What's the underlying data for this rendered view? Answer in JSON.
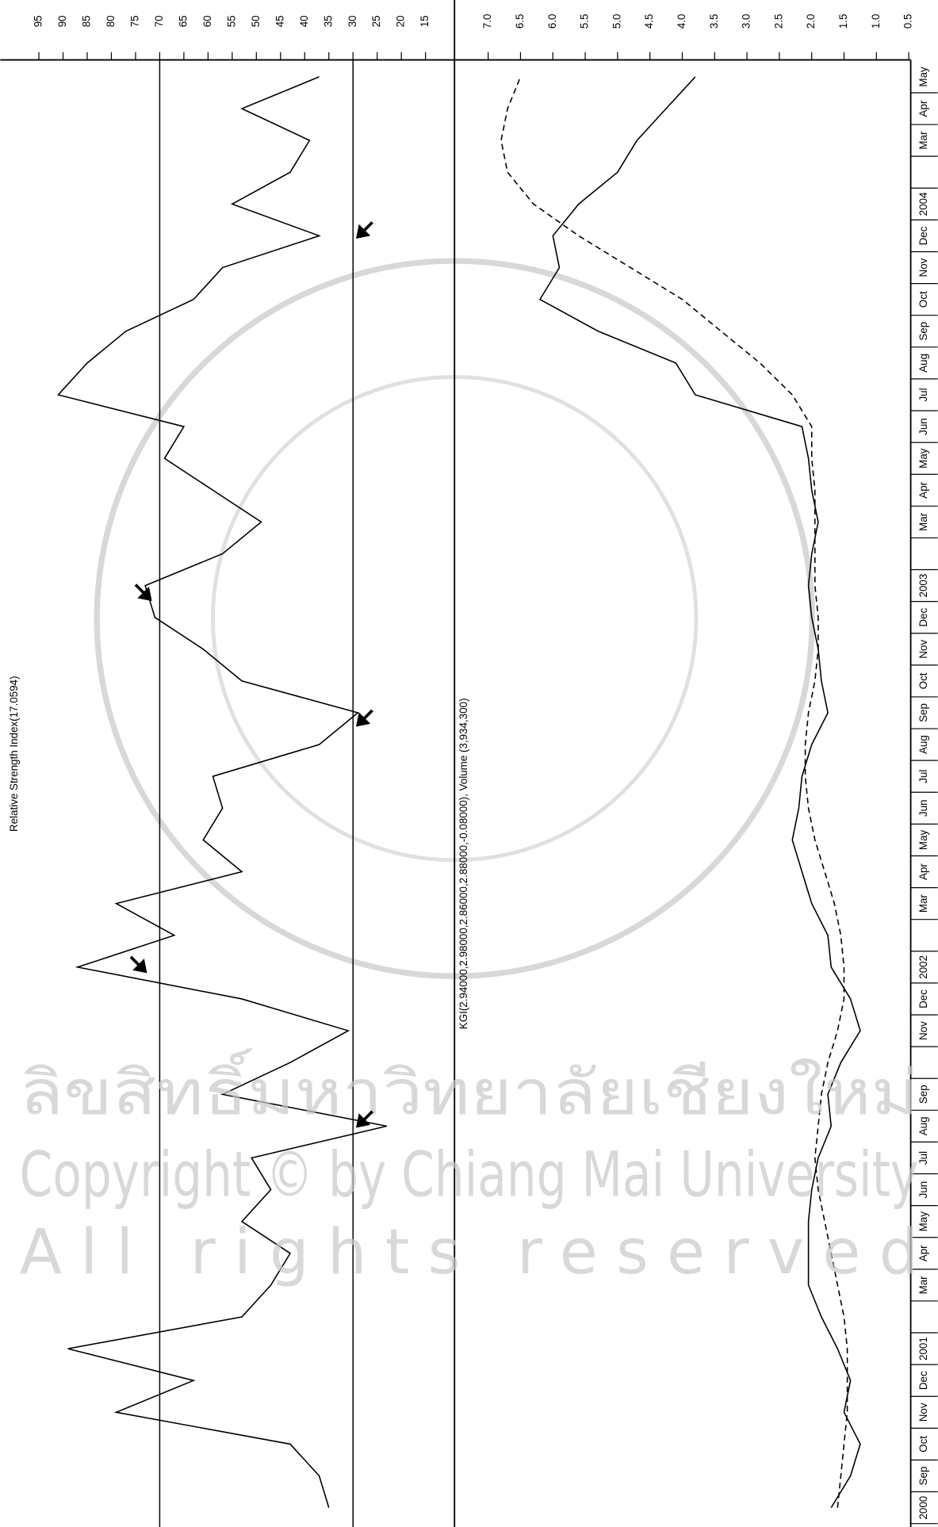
{
  "chart_data": [
    {
      "type": "line",
      "title": "Relative Strength Index(17.0594)",
      "ylim": [
        9,
        103
      ],
      "yticks": [
        95,
        90,
        85,
        80,
        75,
        70,
        65,
        60,
        55,
        50,
        45,
        40,
        35,
        30,
        25,
        20,
        15
      ],
      "reference_lines": [
        70,
        30
      ],
      "series": [
        {
          "color": "#000000",
          "values": [
            35,
            37,
            43,
            79,
            63,
            89,
            53,
            47,
            43,
            53,
            47,
            51,
            23,
            57,
            43,
            31,
            53,
            87,
            67,
            79,
            53,
            61,
            57,
            59,
            37,
            29,
            53,
            61,
            71,
            73,
            57,
            49,
            59,
            69,
            65,
            91,
            85,
            77,
            63,
            57,
            37,
            55,
            43,
            39,
            53,
            37
          ]
        }
      ]
    },
    {
      "type": "line",
      "title": "KGI(2.94000,2.98000,2.86000,2.88000,-0.08000), Volume (3,934,300)",
      "categories": [
        "2000",
        "Sep",
        "Oct",
        "Nov",
        "Dec",
        "2001",
        null,
        "Mar",
        "Apr",
        "May",
        "Jun",
        "Jul",
        "Aug",
        "Sep",
        null,
        "Nov",
        "Dec",
        "2002",
        null,
        "Mar",
        "Apr",
        "May",
        "Jun",
        "Jul",
        "Aug",
        "Sep",
        "Oct",
        "Nov",
        "Dec",
        "2003",
        null,
        "Mar",
        "Apr",
        "May",
        "Jun",
        "Jul",
        "Aug",
        "Sep",
        "Oct",
        "Nov",
        "Dec",
        "2004",
        null,
        "Mar",
        "Apr",
        "May"
      ],
      "ylim": [
        0.47,
        7.52
      ],
      "yticks": [
        {
          "value": 7,
          "label": "7.0"
        },
        6.5,
        {
          "value": 6,
          "label": "6.0"
        },
        5.5,
        {
          "value": 5,
          "label": "5.0"
        },
        4.5,
        {
          "value": 4,
          "label": "4.0"
        },
        3.5,
        {
          "value": 3,
          "label": "3.0"
        },
        2.5,
        {
          "value": 2,
          "label": "2.0"
        },
        1.5,
        {
          "value": 1,
          "label": "1.0"
        },
        0.5
      ],
      "series": [
        {
          "color": "#000000",
          "style": "solid",
          "values": [
            1.7,
            1.4,
            1.25,
            1.5,
            1.4,
            1.6,
            1.85,
            2.05,
            2.05,
            2.05,
            2.0,
            1.9,
            1.7,
            1.75,
            1.55,
            1.25,
            1.4,
            1.7,
            1.75,
            2.0,
            2.15,
            2.3,
            2.2,
            2.15,
            2.0,
            1.75,
            1.85,
            1.9,
            2.0,
            2.05,
            2.0,
            1.9,
            2.0,
            2.05,
            2.15,
            3.8,
            4.1,
            5.3,
            6.2,
            5.9,
            6.0,
            5.6,
            5.0,
            4.7,
            4.25,
            3.8
          ]
        },
        {
          "color": "#000000",
          "style": "dashed",
          "values": [
            1.6,
            1.55,
            1.5,
            1.45,
            1.45,
            1.45,
            1.5,
            1.6,
            1.7,
            1.8,
            1.9,
            1.95,
            1.9,
            1.85,
            1.75,
            1.6,
            1.5,
            1.5,
            1.55,
            1.65,
            1.8,
            1.95,
            2.05,
            2.1,
            2.1,
            2.05,
            1.95,
            1.9,
            1.9,
            1.95,
            1.95,
            1.95,
            1.95,
            2.0,
            2.0,
            2.3,
            2.8,
            3.4,
            4.0,
            4.8,
            5.6,
            6.3,
            6.7,
            6.8,
            6.7,
            6.5
          ]
        }
      ]
    }
  ],
  "watermark": [
    "ลิขสิทธิ์มหาวิทยาลัยเชียงใหม่",
    "Copyright © by Chiang Mai University",
    "All rights reserved"
  ]
}
